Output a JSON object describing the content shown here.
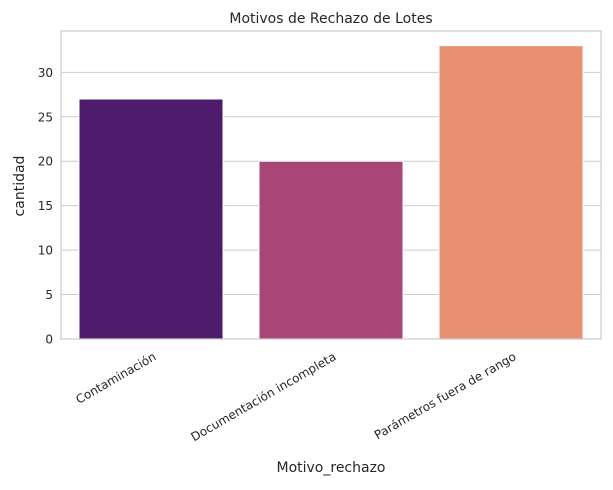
{
  "chart_data": {
    "type": "bar",
    "title": "Motivos de Rechazo de Lotes",
    "xlabel": "Motivo_rechazo",
    "ylabel": "cantidad",
    "categories": [
      "Contaminación",
      "Documentación incompleta",
      "Parámetros fuera de rango"
    ],
    "values": [
      27,
      20,
      33
    ],
    "ylim": [
      0,
      34.65
    ],
    "yticks": [
      0,
      5,
      10,
      15,
      20,
      25,
      30
    ],
    "grid": "horizontal",
    "legend": "none",
    "bar_colors": [
      "#4f1c6b",
      "#a84676",
      "#e99073"
    ],
    "grid_color": "#cccccc",
    "frame_color": "#cccccc"
  }
}
